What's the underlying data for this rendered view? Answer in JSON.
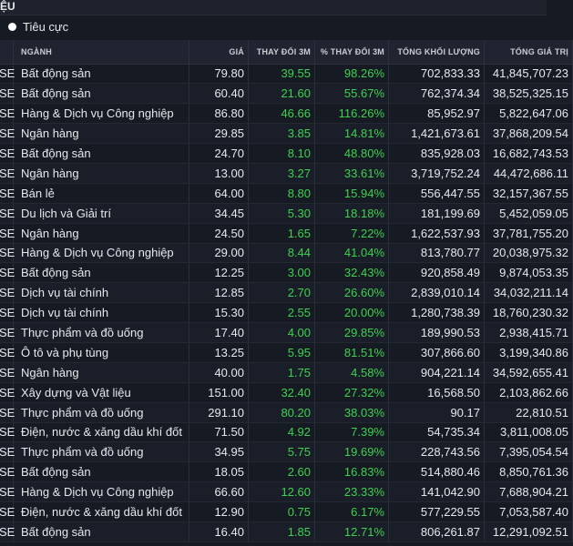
{
  "header": {
    "title": "ỆU"
  },
  "filter": {
    "label": "Tiêu cực"
  },
  "columns": {
    "exchange": "",
    "sector": "NGÀNH",
    "price": "GIÁ",
    "change": "THAY ĐỔI 3M",
    "pct": "% THAY ĐỔI 3M",
    "volume": "TỔNG KHỐI LƯỢNG",
    "value": "TỔNG GIÁ TRỊ"
  },
  "rows": [
    {
      "ex": "SE",
      "sector": "Bất động sản",
      "price": "79.80",
      "change": "39.55",
      "pct": "98.26%",
      "volume": "702,833.33",
      "value": "41,845,707.23"
    },
    {
      "ex": "SE",
      "sector": "Bất động sản",
      "price": "60.40",
      "change": "21.60",
      "pct": "55.67%",
      "volume": "762,374.34",
      "value": "38,525,325.15"
    },
    {
      "ex": "SE",
      "sector": "Hàng & Dịch vụ Công nghiệp",
      "price": "86.80",
      "change": "46.66",
      "pct": "116.26%",
      "volume": "85,952.97",
      "value": "5,822,647.06"
    },
    {
      "ex": "SE",
      "sector": "Ngân hàng",
      "price": "29.85",
      "change": "3.85",
      "pct": "14.81%",
      "volume": "1,421,673.61",
      "value": "37,868,209.54"
    },
    {
      "ex": "SE",
      "sector": "Bất động sản",
      "price": "24.70",
      "change": "8.10",
      "pct": "48.80%",
      "volume": "835,928.03",
      "value": "16,682,743.53"
    },
    {
      "ex": "SE",
      "sector": "Ngân hàng",
      "price": "13.00",
      "change": "3.27",
      "pct": "33.61%",
      "volume": "3,719,752.24",
      "value": "44,472,686.11"
    },
    {
      "ex": "SE",
      "sector": "Bán lẻ",
      "price": "64.00",
      "change": "8.80",
      "pct": "15.94%",
      "volume": "556,447.55",
      "value": "32,157,367.55"
    },
    {
      "ex": "SE",
      "sector": "Du lịch và Giải trí",
      "price": "34.45",
      "change": "5.30",
      "pct": "18.18%",
      "volume": "181,199.69",
      "value": "5,452,059.05"
    },
    {
      "ex": "SE",
      "sector": "Ngân hàng",
      "price": "24.50",
      "change": "1.65",
      "pct": "7.22%",
      "volume": "1,622,537.93",
      "value": "37,781,755.20"
    },
    {
      "ex": "SE",
      "sector": "Hàng & Dịch vụ Công nghiệp",
      "price": "29.00",
      "change": "8.44",
      "pct": "41.04%",
      "volume": "813,780.77",
      "value": "20,038,975.32"
    },
    {
      "ex": "SE",
      "sector": "Bất động sản",
      "price": "12.25",
      "change": "3.00",
      "pct": "32.43%",
      "volume": "920,858.49",
      "value": "9,874,053.35"
    },
    {
      "ex": "SE",
      "sector": "Dịch vụ tài chính",
      "price": "12.85",
      "change": "2.70",
      "pct": "26.60%",
      "volume": "2,839,010.14",
      "value": "34,032,211.14"
    },
    {
      "ex": "SE",
      "sector": "Dịch vụ tài chính",
      "price": "15.30",
      "change": "2.55",
      "pct": "20.00%",
      "volume": "1,280,738.39",
      "value": "18,760,230.32"
    },
    {
      "ex": "SE",
      "sector": "Thực phẩm và đồ uống",
      "price": "17.40",
      "change": "4.00",
      "pct": "29.85%",
      "volume": "189,990.53",
      "value": "2,938,415.71"
    },
    {
      "ex": "SE",
      "sector": "Ô tô và phụ tùng",
      "price": "13.25",
      "change": "5.95",
      "pct": "81.51%",
      "volume": "307,866.60",
      "value": "3,199,340.86"
    },
    {
      "ex": "SE",
      "sector": "Ngân hàng",
      "price": "40.00",
      "change": "1.75",
      "pct": "4.58%",
      "volume": "904,221.14",
      "value": "34,592,655.41"
    },
    {
      "ex": "SE",
      "sector": "Xây dựng và Vật liệu",
      "price": "151.00",
      "change": "32.40",
      "pct": "27.32%",
      "volume": "16,568.50",
      "value": "2,103,862.66"
    },
    {
      "ex": "SE",
      "sector": "Thực phẩm và đồ uống",
      "price": "291.10",
      "change": "80.20",
      "pct": "38.03%",
      "volume": "90.17",
      "value": "22,810.51"
    },
    {
      "ex": "SE",
      "sector": "Điện, nước & xăng dầu khí đốt",
      "price": "71.50",
      "change": "4.92",
      "pct": "7.39%",
      "volume": "54,735.34",
      "value": "3,811,008.05"
    },
    {
      "ex": "SE",
      "sector": "Thực phẩm và đồ uống",
      "price": "34.95",
      "change": "5.75",
      "pct": "19.69%",
      "volume": "228,743.56",
      "value": "7,395,054.54"
    },
    {
      "ex": "SE",
      "sector": "Bất động sản",
      "price": "18.05",
      "change": "2.60",
      "pct": "16.83%",
      "volume": "514,880.46",
      "value": "8,850,761.36"
    },
    {
      "ex": "SE",
      "sector": "Hàng & Dịch vụ Công nghiệp",
      "price": "66.60",
      "change": "12.60",
      "pct": "23.33%",
      "volume": "141,042.90",
      "value": "7,688,904.21"
    },
    {
      "ex": "SE",
      "sector": "Điện, nước & xăng dầu khí đốt",
      "price": "12.90",
      "change": "0.75",
      "pct": "6.17%",
      "volume": "577,229.55",
      "value": "7,053,587.40"
    },
    {
      "ex": "SE",
      "sector": "Bất động sản",
      "price": "16.40",
      "change": "1.85",
      "pct": "12.71%",
      "volume": "806,261.87",
      "value": "12,291,092.51"
    }
  ],
  "colors": {
    "up": "#3fd14f",
    "background": "#161a23",
    "header_bg": "#1f2430"
  }
}
